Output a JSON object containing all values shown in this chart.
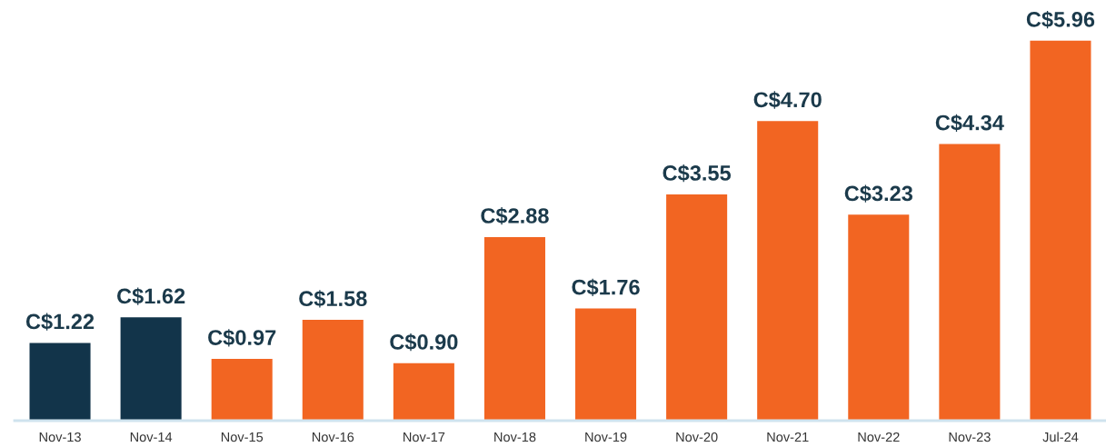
{
  "chart_data": {
    "type": "bar",
    "categories": [
      "Nov-13",
      "Nov-14",
      "Nov-15",
      "Nov-16",
      "Nov-17",
      "Nov-18",
      "Nov-19",
      "Nov-20",
      "Nov-21",
      "Nov-22",
      "Nov-23",
      "Jul-24"
    ],
    "values": [
      1.22,
      1.62,
      0.97,
      1.58,
      0.9,
      2.88,
      1.76,
      3.55,
      4.7,
      3.23,
      4.34,
      5.96
    ],
    "colors": [
      "#12344a",
      "#12344a",
      "#f26522",
      "#f26522",
      "#f26522",
      "#f26522",
      "#f26522",
      "#f26522",
      "#f26522",
      "#f26522",
      "#f26522",
      "#f26522"
    ],
    "value_labels": [
      "C$1.22",
      "C$1.62",
      "C$0.97",
      "C$1.58",
      "C$0.90",
      "C$2.88",
      "C$1.76",
      "C$3.55",
      "C$4.70",
      "C$3.23",
      "C$4.34",
      "C$5.96"
    ],
    "tick_labels": "x"
  }
}
